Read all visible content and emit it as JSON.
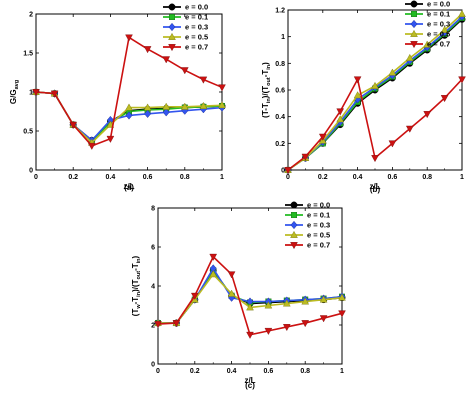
{
  "chart_data": [
    {
      "type": "line",
      "caption": "(a)",
      "xlabel": "z/L",
      "ylabel_parts": [
        "G/G",
        "avg"
      ],
      "xlim": [
        0,
        1
      ],
      "ylim": [
        0,
        2
      ],
      "xticks": [
        "0",
        "0.2",
        "0.4",
        "0.6",
        "0.8",
        "1"
      ],
      "yticks": [
        "0",
        "0.5",
        "1",
        "1.5",
        "2"
      ],
      "legend_position": "top-right",
      "x": [
        0,
        0.1,
        0.2,
        0.3,
        0.4,
        0.5,
        0.6,
        0.7,
        0.8,
        0.9,
        1.0
      ],
      "series": [
        {
          "name": "e = 0.0",
          "color": "#000000",
          "marker": "circle",
          "values": [
            1.0,
            0.98,
            0.58,
            0.38,
            0.62,
            0.76,
            0.78,
            0.79,
            0.8,
            0.81,
            0.82
          ]
        },
        {
          "name": "e = 0.1",
          "color": "#22bb22",
          "marker": "square",
          "values": [
            1.0,
            0.98,
            0.58,
            0.37,
            0.61,
            0.75,
            0.77,
            0.78,
            0.8,
            0.81,
            0.82
          ]
        },
        {
          "name": "e = 0.3",
          "color": "#3355ee",
          "marker": "diamond",
          "values": [
            1.0,
            0.98,
            0.58,
            0.38,
            0.64,
            0.7,
            0.72,
            0.74,
            0.76,
            0.78,
            0.8
          ]
        },
        {
          "name": "e = 0.5",
          "color": "#bbbb22",
          "marker": "triangle-up",
          "values": [
            1.0,
            0.98,
            0.58,
            0.35,
            0.58,
            0.8,
            0.8,
            0.81,
            0.81,
            0.82,
            0.83
          ]
        },
        {
          "name": "e = 0.7",
          "color": "#cc1111",
          "marker": "triangle-down",
          "values": [
            1.0,
            0.98,
            0.58,
            0.31,
            0.4,
            1.7,
            1.55,
            1.42,
            1.28,
            1.16,
            1.06
          ]
        }
      ]
    },
    {
      "type": "line",
      "caption": "(b)",
      "xlabel": "z/L",
      "ylabel_parts": [
        "(T-T",
        "in",
        ")/(T",
        "out",
        "-T",
        "in",
        ")"
      ],
      "xlim": [
        0,
        1
      ],
      "ylim": [
        0,
        1.2
      ],
      "xticks": [
        "0",
        "0.2",
        "0.4",
        "0.6",
        "0.8",
        "1"
      ],
      "yticks": [
        "0",
        "0.2",
        "0.4",
        "0.6",
        "0.8",
        "1",
        "1.2"
      ],
      "legend_position": "top-right",
      "x": [
        0,
        0.1,
        0.2,
        0.3,
        0.4,
        0.5,
        0.6,
        0.7,
        0.8,
        0.9,
        1.0
      ],
      "series": [
        {
          "name": "e = 0.0",
          "color": "#000000",
          "marker": "circle",
          "values": [
            0.0,
            0.09,
            0.2,
            0.34,
            0.5,
            0.6,
            0.69,
            0.8,
            0.9,
            1.01,
            1.13
          ]
        },
        {
          "name": "e = 0.1",
          "color": "#22bb22",
          "marker": "square",
          "values": [
            0.0,
            0.09,
            0.2,
            0.35,
            0.51,
            0.61,
            0.7,
            0.81,
            0.91,
            1.02,
            1.14
          ]
        },
        {
          "name": "e = 0.3",
          "color": "#3355ee",
          "marker": "diamond",
          "values": [
            0.0,
            0.09,
            0.21,
            0.36,
            0.53,
            0.62,
            0.71,
            0.82,
            0.92,
            1.03,
            1.15
          ]
        },
        {
          "name": "e = 0.5",
          "color": "#bbbb22",
          "marker": "triangle-up",
          "values": [
            0.0,
            0.09,
            0.22,
            0.38,
            0.56,
            0.63,
            0.73,
            0.84,
            0.94,
            1.05,
            1.17
          ]
        },
        {
          "name": "e = 0.7",
          "color": "#cc1111",
          "marker": "triangle-down",
          "values": [
            0.0,
            0.1,
            0.25,
            0.44,
            0.68,
            0.09,
            0.2,
            0.31,
            0.42,
            0.54,
            0.68
          ]
        }
      ]
    },
    {
      "type": "line",
      "caption": "(c)",
      "xlabel": "z/L",
      "ylabel_parts": [
        "(T",
        "w",
        "-T",
        "in",
        ")/(T",
        "out",
        "-T",
        "in",
        ")"
      ],
      "xlim": [
        0,
        1
      ],
      "ylim": [
        0,
        8
      ],
      "xticks": [
        "0",
        "0.2",
        "0.4",
        "0.6",
        "0.8",
        "1"
      ],
      "yticks": [
        "0",
        "2",
        "4",
        "6",
        "8"
      ],
      "legend_position": "top-right",
      "x": [
        0,
        0.1,
        0.2,
        0.3,
        0.4,
        0.5,
        0.6,
        0.7,
        0.8,
        0.9,
        1.0
      ],
      "series": [
        {
          "name": "e = 0.0",
          "color": "#000000",
          "marker": "circle",
          "values": [
            2.1,
            2.1,
            3.3,
            4.8,
            3.5,
            3.1,
            3.15,
            3.2,
            3.25,
            3.3,
            3.4
          ]
        },
        {
          "name": "e = 0.1",
          "color": "#22bb22",
          "marker": "square",
          "values": [
            2.1,
            2.1,
            3.3,
            4.8,
            3.5,
            3.15,
            3.2,
            3.25,
            3.3,
            3.35,
            3.45
          ]
        },
        {
          "name": "e = 0.3",
          "color": "#3355ee",
          "marker": "diamond",
          "values": [
            2.1,
            2.1,
            3.3,
            4.9,
            3.4,
            3.2,
            3.2,
            3.25,
            3.3,
            3.35,
            3.45
          ]
        },
        {
          "name": "e = 0.5",
          "color": "#bbbb22",
          "marker": "triangle-up",
          "values": [
            2.1,
            2.1,
            3.3,
            4.6,
            3.6,
            2.9,
            3.0,
            3.1,
            3.2,
            3.3,
            3.4
          ]
        },
        {
          "name": "e = 0.7",
          "color": "#cc1111",
          "marker": "triangle-down",
          "values": [
            2.05,
            2.1,
            3.5,
            5.5,
            4.6,
            1.5,
            1.7,
            1.9,
            2.1,
            2.35,
            2.6
          ]
        }
      ]
    }
  ]
}
